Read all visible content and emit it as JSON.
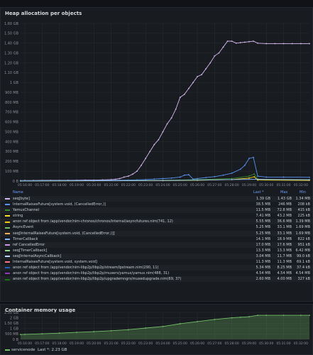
{
  "heap_panel": {
    "title": "Heap allocation per objects",
    "legend_header": {
      "name": "Name",
      "last": "Last *",
      "max": "Max",
      "min": "Min"
    },
    "legend": [
      {
        "name": "seq[byte]",
        "color": "#d5b8f0",
        "last": "1.39 GB",
        "max": "1.43 GB",
        "min": "1.34 MB"
      },
      {
        "name": "InternalRaisesFuture[system.void, (CancelledError,)]",
        "color": "#5794f2",
        "last": "38.5 MB",
        "max": "246 MB",
        "min": "208 kB"
      },
      {
        "name": "YamuxChannel",
        "color": "#37872d",
        "last": "11.5 MB",
        "max": "72.8 MB",
        "min": "415 kB"
      },
      {
        "name": "string",
        "color": "#fade2a",
        "last": "7.41 MB",
        "max": "43.2 MB",
        "min": "225 kB"
      },
      {
        "name": "anon ref object from /app/vendor/nim-chronos/chronos/internal/asyncfutures.nim(741, 12)",
        "color": "#f2cc0c",
        "last": "5.55 MB",
        "max": "36.6 MB",
        "min": "1.39 MB"
      },
      {
        "name": "AsyncEvent",
        "color": "#73bf69",
        "last": "5.25 MB",
        "max": "33.1 MB",
        "min": "1.69 MB"
      },
      {
        "name": "seq[InternalRaisesFuture[system.void, (CancelledError,)]]",
        "color": "#ffb357",
        "last": "5.25 MB",
        "max": "33.1 MB",
        "min": "1.69 MB"
      },
      {
        "name": "TimerCallback",
        "color": "#8ab8ff",
        "last": "14.1 MB",
        "max": "18.9 MB",
        "min": "822 kB"
      },
      {
        "name": "ref CancelledError",
        "color": "#ca95e5",
        "last": "17.0 MB",
        "max": "17.6 MB",
        "min": "951 kB"
      },
      {
        "name": "seq[TimerCallback]",
        "color": "#96d98d",
        "last": "13.3 MB",
        "max": "13.3 MB",
        "min": "6.42 MB"
      },
      {
        "name": "seq[InternalAsyncCallback]",
        "color": "#c0d8ff",
        "last": "3.04 MB",
        "max": "11.7 MB",
        "min": "99.0 kB"
      },
      {
        "name": "InternalRaisesFuture[system.void, system.void]",
        "color": "#ff7383",
        "last": "11.3 MB",
        "max": "11.3 MB",
        "min": "69.1 kB"
      },
      {
        "name": "anon ref object from /app/vendor/nim-libp2p/libp2p/stream/lpstream.nim(290, 11)",
        "color": "#1f60c4",
        "last": "5.34 MB",
        "max": "8.25 MB",
        "min": "37.4 kB"
      },
      {
        "name": "anon ref object from /app/vendor/nim-libp2p/libp2p/muxers/yamux/yamux.nim(488, 31)",
        "color": "#8f3bb8",
        "last": "4.54 MB",
        "max": "4.54 MB",
        "min": "4.54 MB"
      },
      {
        "name": "anon ref object from /app/vendor/nim-libp2p/libp2p/upgrademngrs/muxedupgrade.nim(69, 37)",
        "color": "#19730e",
        "last": "2.60 MB",
        "max": "4.00 MB",
        "min": "327 kB"
      }
    ]
  },
  "memory_panel": {
    "title": "Container memory usage",
    "legend_label": "servicenode",
    "legend_last": "Last *: 2.23 GB"
  },
  "chart_data": [
    {
      "type": "line",
      "title": "Heap allocation per objects",
      "y_ticks": [
        "0 B",
        "100 MB",
        "200 MB",
        "300 MB",
        "400 MB",
        "500 MB",
        "600 MB",
        "700 MB",
        "800 MB",
        "900 MB",
        "1 GB",
        "1.10 GB",
        "1.20 GB",
        "1.30 GB",
        "1.40 GB",
        "1.50 GB",
        "1.60 GB"
      ],
      "y_unit": "MB",
      "ylim": [
        0,
        1600
      ],
      "x_ticks": [
        "05:16:00",
        "05:17:00",
        "05:18:00",
        "05:19:00",
        "05:20:00",
        "05:21:00",
        "05:22:00",
        "05:23:00",
        "05:24:00",
        "05:25:00",
        "05:26:00",
        "05:27:00",
        "05:28:00",
        "05:29:00",
        "05:30:00",
        "05:31:00",
        "05:32:00"
      ],
      "xlim": [
        -0.25,
        16.5
      ],
      "x_unit": "minutes after 05:16:00",
      "series": [
        {
          "name": "seq[byte]",
          "color": "#d5b8f0",
          "x": [
            -0.25,
            0,
            0.5,
            1,
            1.5,
            2,
            2.5,
            3,
            3.5,
            4,
            4.5,
            5,
            5.25,
            5.5,
            5.75,
            6,
            6.25,
            6.5,
            6.75,
            7,
            7.25,
            7.5,
            7.75,
            8,
            8.25,
            8.5,
            8.75,
            9,
            9.25,
            9.5,
            9.75,
            10,
            10.25,
            10.5,
            10.75,
            11,
            11.25,
            11.5,
            11.75,
            12,
            12.25,
            12.5,
            12.75,
            13,
            13.25,
            13.5,
            14,
            14.5,
            15,
            15.5,
            16,
            16.5
          ],
          "y": [
            5,
            6,
            6,
            7,
            7,
            8,
            8,
            9,
            10,
            10,
            12,
            15,
            18,
            25,
            40,
            50,
            70,
            100,
            160,
            230,
            300,
            370,
            420,
            500,
            580,
            640,
            730,
            850,
            880,
            940,
            1000,
            1060,
            1080,
            1140,
            1200,
            1270,
            1300,
            1360,
            1420,
            1420,
            1400,
            1405,
            1410,
            1415,
            1420,
            1400,
            1395,
            1395,
            1395,
            1395,
            1395,
            1395
          ]
        },
        {
          "name": "InternalRaisesFuture[system.void, (CancelledError,)]",
          "color": "#5794f2",
          "x": [
            -0.25,
            1,
            2,
            3,
            4,
            5,
            6,
            6.5,
            7,
            7.5,
            8,
            8.5,
            9,
            9.25,
            9.5,
            9.75,
            10,
            10.5,
            11,
            11.5,
            12,
            12.5,
            12.75,
            13,
            13.25,
            13.5,
            14,
            15,
            16.5
          ],
          "y": [
            4,
            5,
            5,
            6,
            6,
            8,
            10,
            12,
            15,
            20,
            25,
            30,
            40,
            60,
            65,
            20,
            25,
            35,
            45,
            60,
            80,
            120,
            160,
            230,
            240,
            50,
            40,
            40,
            38
          ]
        },
        {
          "name": "YamuxChannel",
          "color": "#37872d",
          "x": [
            -0.25,
            2,
            4,
            6,
            8,
            10,
            12,
            13,
            13.3,
            13.5,
            14,
            16.5
          ],
          "y": [
            2,
            3,
            4,
            5,
            8,
            15,
            25,
            50,
            72,
            20,
            12,
            11
          ]
        },
        {
          "name": "string",
          "color": "#fade2a",
          "x": [
            -0.25,
            4,
            8,
            10,
            12,
            13,
            13.3,
            13.5,
            16.5
          ],
          "y": [
            1,
            2,
            4,
            8,
            15,
            30,
            43,
            10,
            7
          ]
        },
        {
          "name": "TimerCallback",
          "color": "#8ab8ff",
          "x": [
            -0.25,
            4,
            8,
            10,
            12,
            13.5,
            16.5
          ],
          "y": [
            1,
            3,
            6,
            10,
            15,
            18,
            14
          ]
        }
      ]
    },
    {
      "type": "area",
      "title": "Container memory usage",
      "y_ticks": [
        "0 B",
        "500 MB",
        "1 GB",
        "1.50 GB",
        "2 GB",
        "2.50 GB"
      ],
      "y_unit": "GB",
      "ylim": [
        0,
        2.5
      ],
      "x_ticks": [
        "05:16:00",
        "05:17:00",
        "05:18:00",
        "05:19:00",
        "05:20:00",
        "05:21:00",
        "05:22:00",
        "05:23:00",
        "05:24:00",
        "05:25:00",
        "05:26:00",
        "05:27:00",
        "05:28:00",
        "05:29:00",
        "05:30:00",
        "05:31:00",
        "05:32:00"
      ],
      "xlim": [
        -0.25,
        16.5
      ],
      "x_unit": "minutes after 05:16:00",
      "series": [
        {
          "name": "servicenode",
          "color": "#73bf69",
          "x": [
            -0.25,
            0,
            1,
            2,
            3,
            4,
            5,
            6,
            7,
            8,
            9,
            10,
            11,
            12,
            12.5,
            13,
            13.5,
            14,
            15,
            16,
            16.5
          ],
          "y": [
            0.45,
            0.47,
            0.52,
            0.58,
            0.65,
            0.72,
            0.8,
            0.9,
            1.05,
            1.2,
            1.45,
            1.65,
            1.85,
            2.0,
            2.05,
            2.1,
            2.23,
            2.23,
            2.23,
            2.23,
            2.23
          ]
        }
      ]
    }
  ]
}
